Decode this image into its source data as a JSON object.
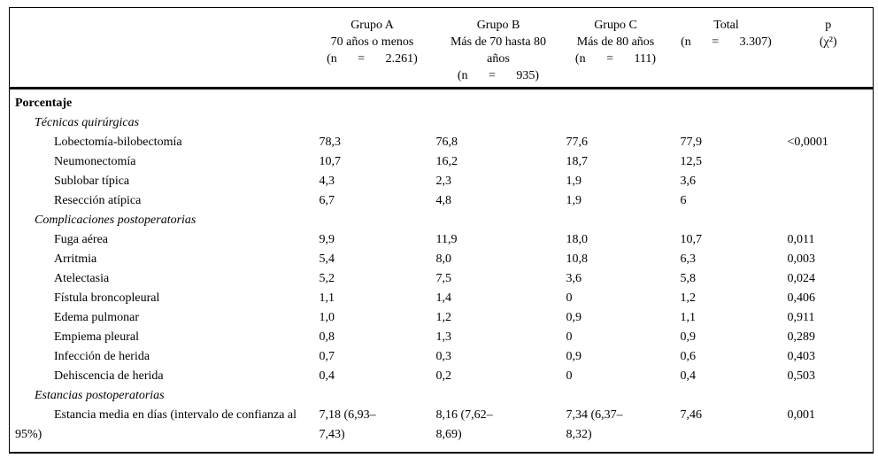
{
  "page": {
    "background_color": "#ffffff",
    "text_color": "#000000"
  },
  "table": {
    "columns": [
      {
        "name": "Grupo A",
        "desc": "70 años o menos",
        "n": "(n = 2.261)"
      },
      {
        "name": "Grupo B",
        "desc": "Más de 70 hasta 80 años",
        "n": "(n = 935)"
      },
      {
        "name": "Grupo C",
        "desc": "Más de 80 años",
        "n": "(n = 111)"
      },
      {
        "name": "Total",
        "n": "(n = 3.307)"
      },
      {
        "name": "p",
        "desc": "(χ²)"
      }
    ],
    "rows": [
      {
        "label": "Porcentaje",
        "type": "group",
        "values": [
          "",
          "",
          "",
          "",
          ""
        ]
      },
      {
        "label": "Técnicas quirúrgicas",
        "type": "section",
        "values": [
          "",
          "",
          "",
          "",
          ""
        ]
      },
      {
        "label": "Lobectomía-bilobectomía",
        "type": "item",
        "values": [
          "78,3",
          "76,8",
          "77,6",
          "77,9",
          "<0,0001"
        ]
      },
      {
        "label": "Neumonectomía",
        "type": "item",
        "values": [
          "10,7",
          "16,2",
          "18,7",
          "12,5",
          ""
        ]
      },
      {
        "label": "Sublobar típica",
        "type": "item",
        "values": [
          "4,3",
          "2,3",
          "1,9",
          "3,6",
          ""
        ]
      },
      {
        "label": "Resección atípica",
        "type": "item",
        "values": [
          "6,7",
          "4,8",
          "1,9",
          "6",
          ""
        ]
      },
      {
        "label": "Complicaciones postoperatorias",
        "type": "section",
        "values": [
          "",
          "",
          "",
          "",
          ""
        ]
      },
      {
        "label": "Fuga aérea",
        "type": "item",
        "values": [
          "9,9",
          "11,9",
          "18,0",
          "10,7",
          "0,011"
        ]
      },
      {
        "label": "Arritmia",
        "type": "item",
        "values": [
          "5,4",
          "8,0",
          "10,8",
          "6,3",
          "0,003"
        ]
      },
      {
        "label": "Atelectasia",
        "type": "item",
        "values": [
          "5,2",
          "7,5",
          "3,6",
          "5,8",
          "0,024"
        ]
      },
      {
        "label": "Fístula broncopleural",
        "type": "item",
        "values": [
          "1,1",
          "1,4",
          "0",
          "1,2",
          "0,406"
        ]
      },
      {
        "label": "Edema pulmonar",
        "type": "item",
        "values": [
          "1,0",
          "1,2",
          "0,9",
          "1,1",
          "0,911"
        ]
      },
      {
        "label": "Empiema pleural",
        "type": "item",
        "values": [
          "0,8",
          "1,3",
          "0",
          "0,9",
          "0,289"
        ]
      },
      {
        "label": "Infección de herida",
        "type": "item",
        "values": [
          "0,7",
          "0,3",
          "0,9",
          "0,6",
          "0,403"
        ]
      },
      {
        "label": "Dehiscencia de herida",
        "type": "item",
        "values": [
          "0,4",
          "0,2",
          "0",
          "0,4",
          "0,503"
        ]
      },
      {
        "label": "Estancias postoperatorias",
        "type": "section",
        "values": [
          "",
          "",
          "",
          "",
          ""
        ]
      },
      {
        "label": "Estancia media en días (intervalo de confianza al 95%)",
        "type": "item-wrap",
        "values": [
          "7,18 (6,93–7,43)",
          "8,16 (7,62–8,69)",
          "7,34 (6,37–8,32)",
          "7,46",
          "0,001"
        ]
      }
    ]
  }
}
